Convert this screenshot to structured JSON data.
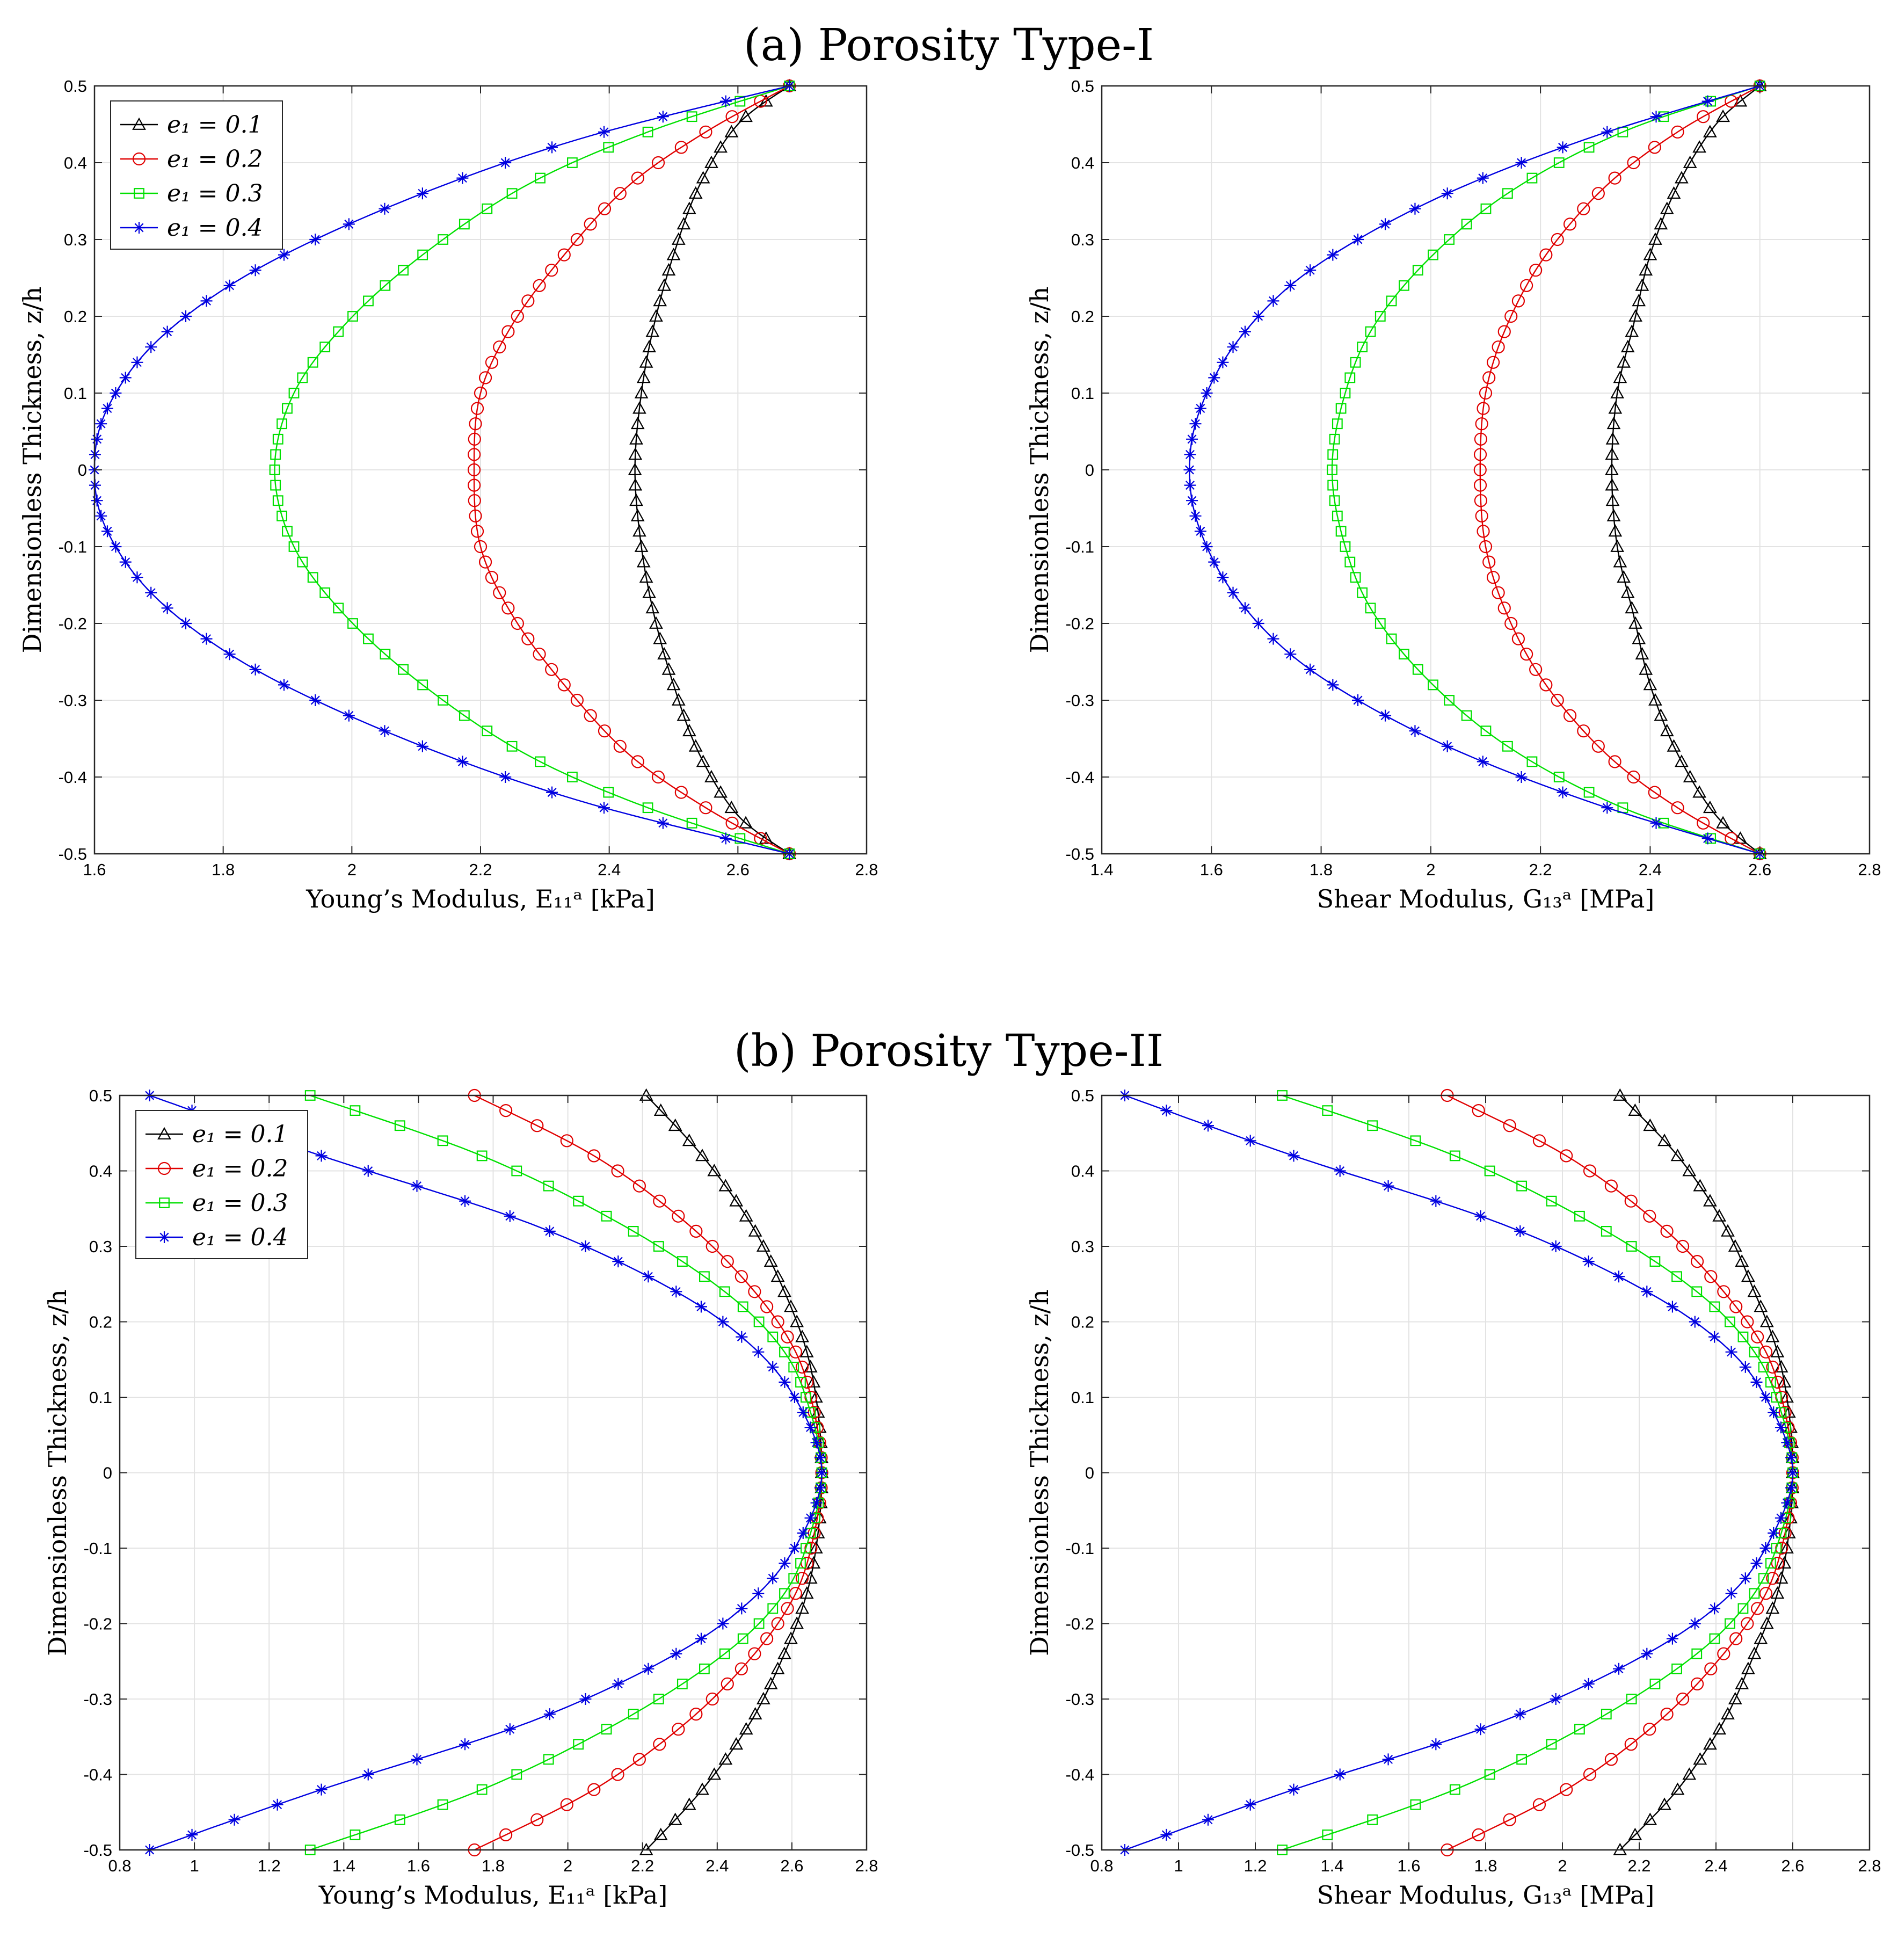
{
  "figure": {
    "panel_a_title": "(a) Porosity Type-I",
    "panel_b_title": "(b) Porosity Type-II"
  },
  "chart_data": [
    {
      "type": "line",
      "id": "a-left",
      "title": "(a) Porosity Type-I",
      "xlabel": "Young’s Modulus, E₁₁ᵃ [kPa]",
      "ylabel": "Dimensionless Thickness, z/h",
      "xlim": [
        1.6,
        2.8
      ],
      "ylim": [
        -0.5,
        0.5
      ],
      "xticks": [
        1.6,
        1.8,
        2,
        2.2,
        2.4,
        2.6,
        2.8
      ],
      "xtick_labels": [
        "1.6",
        "1.8",
        "2",
        "2.2",
        "2.4",
        "2.6",
        "2.8"
      ],
      "yticks": [
        -0.5,
        -0.4,
        -0.3,
        -0.2,
        -0.1,
        0,
        0.1,
        0.2,
        0.3,
        0.4,
        0.5
      ],
      "ytick_labels": [
        "-0.5",
        "-0.4",
        "-0.3",
        "-0.2",
        "-0.1",
        "0",
        "0.1",
        "0.2",
        "0.3",
        "0.4",
        "0.5"
      ],
      "grid": true,
      "legend": "top-left",
      "series": [
        {
          "name": "e₁ = 0.1",
          "color": "#000000",
          "marker": "triangle",
          "x": [
            2.68,
            2.6,
            2.54,
            2.5,
            2.47,
            2.45,
            2.44,
            2.45,
            2.47,
            2.5,
            2.54,
            2.6,
            2.68
          ],
          "y": [
            0.5,
            0.45,
            0.37,
            0.28,
            0.19,
            0.1,
            0,
            -0.1,
            -0.19,
            -0.28,
            -0.37,
            -0.45,
            -0.5
          ]
        },
        {
          "name": "e₁ = 0.2",
          "color": "#e00000",
          "marker": "circle",
          "x": [
            2.68,
            2.55,
            2.43,
            2.33,
            2.25,
            2.2,
            2.19,
            2.2,
            2.25,
            2.33,
            2.43,
            2.55,
            2.68
          ],
          "y": [
            0.5,
            0.44,
            0.37,
            0.28,
            0.19,
            0.1,
            0,
            -0.1,
            -0.19,
            -0.28,
            -0.37,
            -0.44,
            -0.5
          ]
        },
        {
          "name": "e₁ = 0.3",
          "color": "#00e000",
          "marker": "square",
          "x": [
            2.68,
            2.46,
            2.27,
            2.11,
            1.99,
            1.91,
            1.88,
            1.91,
            1.99,
            2.11,
            2.27,
            2.46,
            2.68
          ],
          "y": [
            0.5,
            0.44,
            0.37,
            0.28,
            0.19,
            0.1,
            0,
            -0.1,
            -0.19,
            -0.28,
            -0.37,
            -0.44,
            -0.5
          ]
        },
        {
          "name": "e₁ = 0.4",
          "color": "#0000e0",
          "marker": "star",
          "x": [
            2.68,
            2.35,
            2.08,
            1.85,
            1.7,
            1.62,
            1.6,
            1.62,
            1.7,
            1.85,
            2.08,
            2.35,
            2.68
          ],
          "y": [
            0.5,
            0.43,
            0.35,
            0.26,
            0.17,
            0.08,
            0,
            -0.08,
            -0.17,
            -0.26,
            -0.35,
            -0.43,
            -0.5
          ]
        }
      ]
    },
    {
      "type": "line",
      "id": "a-right",
      "title": "(a) Porosity Type-I",
      "xlabel": "Shear Modulus, G₁₃ᵃ [MPa]",
      "ylabel": "Dimensionless Thickness, z/h",
      "xlim": [
        1.4,
        2.8
      ],
      "ylim": [
        -0.5,
        0.5
      ],
      "xticks": [
        1.4,
        1.6,
        1.8,
        2,
        2.2,
        2.4,
        2.6,
        2.8
      ],
      "xtick_labels": [
        "1.4",
        "1.6",
        "1.8",
        "2",
        "2.2",
        "2.4",
        "2.6",
        "2.8"
      ],
      "yticks": [
        -0.5,
        -0.4,
        -0.3,
        -0.2,
        -0.1,
        0,
        0.1,
        0.2,
        0.3,
        0.4,
        0.5
      ],
      "ytick_labels": [
        "-0.5",
        "-0.4",
        "-0.3",
        "-0.2",
        "-0.1",
        "0",
        "0.1",
        "0.2",
        "0.3",
        "0.4",
        "0.5"
      ],
      "grid": true,
      "legend": "none",
      "series": [
        {
          "name": "e₁ = 0.1",
          "color": "#000000",
          "marker": "triangle",
          "x": [
            2.6,
            2.52,
            2.45,
            2.4,
            2.37,
            2.34,
            2.33,
            2.34,
            2.37,
            2.4,
            2.45,
            2.52,
            2.6
          ],
          "y": [
            0.5,
            0.45,
            0.37,
            0.28,
            0.19,
            0.1,
            0,
            -0.1,
            -0.19,
            -0.28,
            -0.37,
            -0.45,
            -0.5
          ]
        },
        {
          "name": "e₁ = 0.2",
          "color": "#e00000",
          "marker": "circle",
          "x": [
            2.6,
            2.45,
            2.32,
            2.21,
            2.14,
            2.1,
            2.09,
            2.1,
            2.14,
            2.21,
            2.32,
            2.45,
            2.6
          ],
          "y": [
            0.5,
            0.44,
            0.37,
            0.28,
            0.19,
            0.1,
            0,
            -0.1,
            -0.19,
            -0.28,
            -0.37,
            -0.44,
            -0.5
          ]
        },
        {
          "name": "e₁ = 0.3",
          "color": "#00e000",
          "marker": "square",
          "x": [
            2.6,
            2.35,
            2.14,
            1.99,
            1.89,
            1.84,
            1.82,
            1.84,
            1.89,
            1.99,
            2.14,
            2.35,
            2.6
          ],
          "y": [
            0.5,
            0.44,
            0.36,
            0.27,
            0.18,
            0.09,
            0,
            -0.09,
            -0.18,
            -0.27,
            -0.36,
            -0.44,
            -0.5
          ]
        },
        {
          "name": "e₁ = 0.4",
          "color": "#0000e0",
          "marker": "star",
          "x": [
            2.6,
            2.28,
            2.0,
            1.78,
            1.65,
            1.58,
            1.56,
            1.58,
            1.65,
            1.78,
            2.0,
            2.28,
            2.6
          ],
          "y": [
            0.5,
            0.43,
            0.35,
            0.26,
            0.17,
            0.08,
            0,
            -0.08,
            -0.17,
            -0.26,
            -0.35,
            -0.43,
            -0.5
          ]
        }
      ]
    },
    {
      "type": "line",
      "id": "b-left",
      "title": "(b) Porosity Type-II",
      "xlabel": "Young’s Modulus, E₁₁ᵃ [kPa]",
      "ylabel": "Dimensionless Thickness, z/h",
      "xlim": [
        0.8,
        2.8
      ],
      "ylim": [
        -0.5,
        0.5
      ],
      "xticks": [
        0.8,
        1,
        1.2,
        1.4,
        1.6,
        1.8,
        2,
        2.2,
        2.4,
        2.6,
        2.8
      ],
      "xtick_labels": [
        "0.8",
        "1",
        "1.2",
        "1.4",
        "1.6",
        "1.8",
        "2",
        "2.2",
        "2.4",
        "2.6",
        "2.8"
      ],
      "yticks": [
        -0.5,
        -0.4,
        -0.3,
        -0.2,
        -0.1,
        0,
        0.1,
        0.2,
        0.3,
        0.4,
        0.5
      ],
      "ytick_labels": [
        "-0.5",
        "-0.4",
        "-0.3",
        "-0.2",
        "-0.1",
        "0",
        "0.1",
        "0.2",
        "0.3",
        "0.4",
        "0.5"
      ],
      "grid": true,
      "legend": "top-left",
      "series": [
        {
          "name": "e₁ = 0.1",
          "color": "#000000",
          "marker": "triangle",
          "x": [
            2.21,
            2.36,
            2.49,
            2.58,
            2.64,
            2.67,
            2.68,
            2.67,
            2.64,
            2.58,
            2.49,
            2.36,
            2.21
          ],
          "y": [
            0.5,
            0.42,
            0.33,
            0.24,
            0.16,
            0.08,
            0,
            -0.08,
            -0.16,
            -0.24,
            -0.33,
            -0.42,
            -0.5
          ]
        },
        {
          "name": "e₁ = 0.2",
          "color": "#e00000",
          "marker": "circle",
          "x": [
            1.75,
            2.07,
            2.32,
            2.5,
            2.61,
            2.66,
            2.68,
            2.66,
            2.61,
            2.5,
            2.32,
            2.07,
            1.75
          ],
          "y": [
            0.5,
            0.42,
            0.33,
            0.24,
            0.16,
            0.08,
            0,
            -0.08,
            -0.16,
            -0.24,
            -0.33,
            -0.42,
            -0.5
          ]
        },
        {
          "name": "e₁ = 0.3",
          "color": "#00e000",
          "marker": "square",
          "x": [
            1.31,
            1.77,
            2.14,
            2.42,
            2.58,
            2.65,
            2.68,
            2.65,
            2.58,
            2.42,
            2.14,
            1.77,
            1.31
          ],
          "y": [
            0.5,
            0.42,
            0.33,
            0.24,
            0.16,
            0.08,
            0,
            -0.08,
            -0.16,
            -0.24,
            -0.33,
            -0.42,
            -0.5
          ]
        },
        {
          "name": "e₁ = 0.4",
          "color": "#0000e0",
          "marker": "star",
          "x": [
            0.88,
            1.34,
            1.9,
            2.29,
            2.51,
            2.63,
            2.68,
            2.63,
            2.51,
            2.29,
            1.9,
            1.34,
            0.88
          ],
          "y": [
            0.5,
            0.42,
            0.33,
            0.24,
            0.16,
            0.08,
            0,
            -0.08,
            -0.16,
            -0.24,
            -0.33,
            -0.42,
            -0.5
          ]
        }
      ]
    },
    {
      "type": "line",
      "id": "b-right",
      "title": "(b) Porosity Type-II",
      "xlabel": "Shear Modulus, G₁₃ᵃ [MPa]",
      "ylabel": "Dimensionless Thickness, z/h",
      "xlim": [
        0.8,
        2.8
      ],
      "ylim": [
        -0.5,
        0.5
      ],
      "xticks": [
        0.8,
        1,
        1.2,
        1.4,
        1.6,
        1.8,
        2,
        2.2,
        2.4,
        2.6,
        2.8
      ],
      "xtick_labels": [
        "0.8",
        "1",
        "1.2",
        "1.4",
        "1.6",
        "1.8",
        "2",
        "2.2",
        "2.4",
        "2.6",
        "2.8"
      ],
      "yticks": [
        -0.5,
        -0.4,
        -0.3,
        -0.2,
        -0.1,
        0,
        0.1,
        0.2,
        0.3,
        0.4,
        0.5
      ],
      "ytick_labels": [
        "-0.5",
        "-0.4",
        "-0.3",
        "-0.2",
        "-0.1",
        "0",
        "0.1",
        "0.2",
        "0.3",
        "0.4",
        "0.5"
      ],
      "grid": true,
      "legend": "none",
      "series": [
        {
          "name": "e₁ = 0.1",
          "color": "#000000",
          "marker": "triangle",
          "x": [
            2.15,
            2.3,
            2.42,
            2.5,
            2.56,
            2.59,
            2.6,
            2.59,
            2.56,
            2.5,
            2.42,
            2.3,
            2.15
          ],
          "y": [
            0.5,
            0.42,
            0.33,
            0.24,
            0.16,
            0.08,
            0,
            -0.08,
            -0.16,
            -0.24,
            -0.33,
            -0.42,
            -0.5
          ]
        },
        {
          "name": "e₁ = 0.2",
          "color": "#e00000",
          "marker": "circle",
          "x": [
            1.7,
            2.01,
            2.25,
            2.42,
            2.53,
            2.58,
            2.6,
            2.58,
            2.53,
            2.42,
            2.25,
            2.01,
            1.7
          ],
          "y": [
            0.5,
            0.42,
            0.33,
            0.24,
            0.16,
            0.08,
            0,
            -0.08,
            -0.16,
            -0.24,
            -0.33,
            -0.42,
            -0.5
          ]
        },
        {
          "name": "e₁ = 0.3",
          "color": "#00e000",
          "marker": "square",
          "x": [
            1.27,
            1.72,
            2.08,
            2.35,
            2.5,
            2.57,
            2.6,
            2.57,
            2.5,
            2.35,
            2.08,
            1.72,
            1.27
          ],
          "y": [
            0.5,
            0.42,
            0.33,
            0.24,
            0.16,
            0.08,
            0,
            -0.08,
            -0.16,
            -0.24,
            -0.33,
            -0.42,
            -0.5
          ]
        },
        {
          "name": "e₁ = 0.4",
          "color": "#0000e0",
          "marker": "star",
          "x": [
            0.86,
            1.3,
            1.84,
            2.22,
            2.44,
            2.55,
            2.6,
            2.55,
            2.44,
            2.22,
            1.84,
            1.3,
            0.86
          ],
          "y": [
            0.5,
            0.42,
            0.33,
            0.24,
            0.16,
            0.08,
            0,
            -0.08,
            -0.16,
            -0.24,
            -0.33,
            -0.42,
            -0.5
          ]
        }
      ]
    }
  ]
}
